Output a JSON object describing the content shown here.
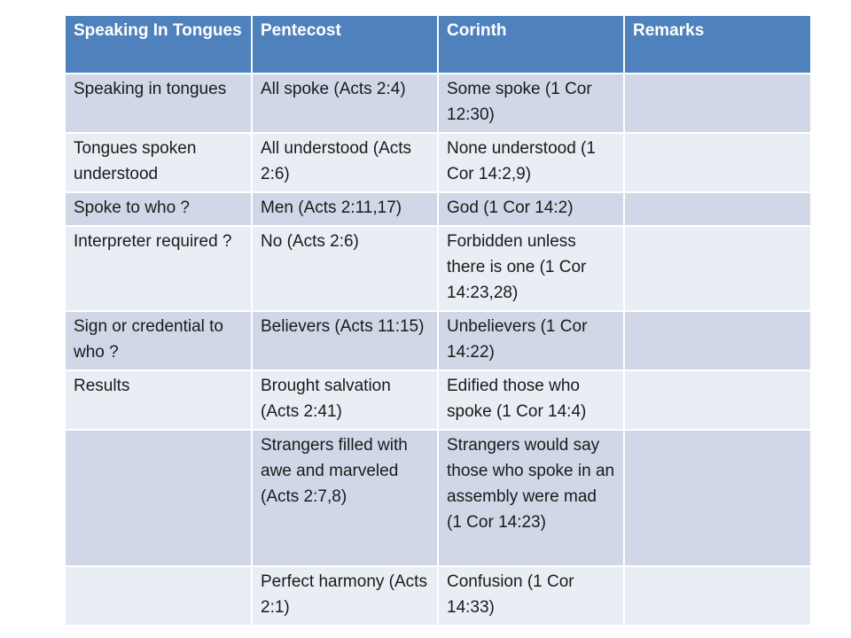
{
  "table": {
    "headers": [
      "Speaking In Tongues",
      "Pentecost",
      "Corinth",
      "Remarks"
    ],
    "rows": [
      [
        "Speaking in tongues",
        "All spoke  (Acts 2:4)",
        "Some spoke (1 Cor 12:30)",
        ""
      ],
      [
        "Tongues spoken understood",
        "All understood (Acts 2:6)",
        "None understood (1 Cor 14:2,9)",
        ""
      ],
      [
        "Spoke to who ?",
        "Men (Acts 2:11,17)",
        "God (1 Cor 14:2)",
        ""
      ],
      [
        "Interpreter required ?",
        "No   (Acts 2:6)",
        "Forbidden unless there is one (1 Cor 14:23,28)",
        ""
      ],
      [
        "Sign or credential to who ?",
        "Believers (Acts 11:15)",
        "Unbelievers (1 Cor 14:22)",
        ""
      ],
      [
        "Results",
        "Brought salvation (Acts 2:41)",
        "Edified those who spoke (1 Cor 14:4)",
        ""
      ],
      [
        "",
        "Strangers filled with awe and marveled (Acts 2:7,8)",
        "Strangers would say those who spoke in an assembly were mad  (1 Cor 14:23)",
        ""
      ],
      [
        "",
        "Perfect harmony (Acts 2:1)",
        "Confusion (1 Cor 14:33)",
        ""
      ]
    ]
  },
  "colors": {
    "header_bg": "#4f81bd",
    "row_band_dark": "#d0d8e8",
    "row_band_light": "#e9edf4"
  }
}
